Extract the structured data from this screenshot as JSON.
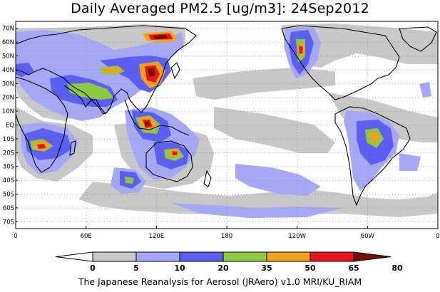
{
  "title": "Daily Averaged PM2.5 [ug/m3]: 24Sep2012",
  "credit": "The Japanese Reanalysis for Aerosol (JRAero) v1.0 MRI/KU_RIAM",
  "map": {
    "projection": "equirectangular, 0E to 360E, 75S to 75N",
    "lat_labels": [
      "70N",
      "60N",
      "50N",
      "40N",
      "30N",
      "20N",
      "10N",
      "EQ",
      "10S",
      "20S",
      "30S",
      "40S",
      "50S",
      "60S",
      "70S"
    ],
    "lat_values": [
      70,
      60,
      50,
      40,
      30,
      20,
      10,
      0,
      -10,
      -20,
      -30,
      -40,
      -50,
      -60,
      -70
    ],
    "lon_labels": [
      "0",
      "60E",
      "120E",
      "180",
      "120W",
      "60W",
      "0"
    ],
    "lon_values": [
      0,
      60,
      120,
      180,
      240,
      300,
      360
    ],
    "grid": "dotted"
  },
  "colorbar": {
    "labels": [
      "0",
      "5",
      "10",
      "20",
      "35",
      "50",
      "65",
      "80"
    ],
    "colors": [
      "#ffffff",
      "#c8c8c8",
      "#a5a9f5",
      "#5a5ef2",
      "#8ccb3c",
      "#f3a21a",
      "#e8141a",
      "#7a0a0a"
    ]
  }
}
